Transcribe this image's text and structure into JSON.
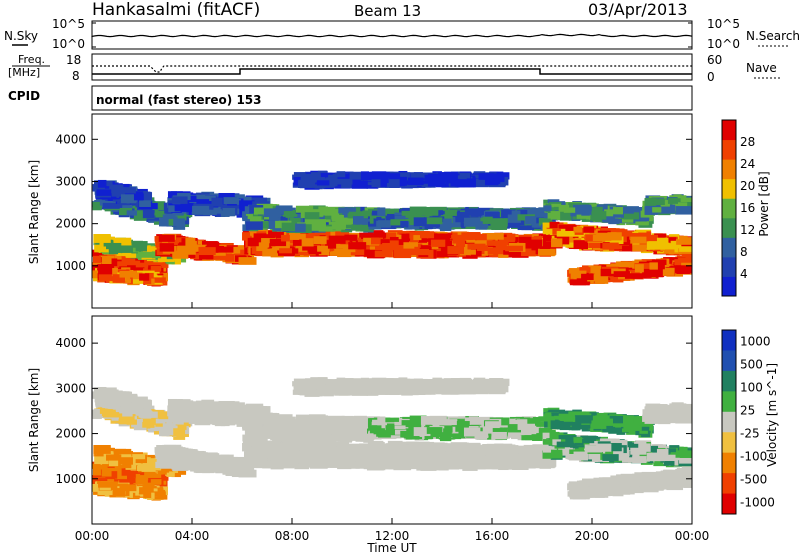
{
  "header": {
    "station": "Hankasalmi (fitACF)",
    "beam": "Beam 13",
    "date": "03/Apr/2013"
  },
  "noise_panel": {
    "left_label": "N.Sky",
    "right_label": "N.Search",
    "left_ticks": [
      "10^5",
      "10^0"
    ],
    "right_ticks": [
      "10^5",
      "10^0"
    ]
  },
  "freq_panel": {
    "left_label_1": "Freq.",
    "left_label_2": "[MHz]",
    "right_label": "Nave",
    "left_ticks": [
      "18",
      "8"
    ],
    "right_ticks": [
      "60",
      "0"
    ]
  },
  "cpid": {
    "label": "CPID",
    "value": "normal (fast stereo) 153"
  },
  "colors": {
    "power": [
      "#1020d0",
      "#2040b0",
      "#3060a0",
      "#3a9050",
      "#60b040",
      "#f0c000",
      "#f08000",
      "#f04000",
      "#e00000"
    ],
    "velocity": [
      "#1030c0",
      "#2050b0",
      "#208060",
      "#40b040",
      "#c8c8c0",
      "#f0c040",
      "#f08000",
      "#f04000",
      "#e00000"
    ]
  },
  "chart_data": [
    {
      "type": "heatmap",
      "name": "power",
      "ylabel": "Slant Range [km]",
      "yticks": [
        "1000",
        "2000",
        "3000",
        "4000"
      ],
      "ylim": [
        0,
        4600
      ],
      "colorbar": {
        "label": "Power [dB]",
        "ticks": [
          "4",
          "8",
          "12",
          "16",
          "20",
          "24",
          "28"
        ],
        "range": [
          0,
          32
        ]
      }
    },
    {
      "type": "heatmap",
      "name": "velocity",
      "ylabel": "Slant Range [km]",
      "yticks": [
        "1000",
        "2000",
        "3000",
        "4000"
      ],
      "ylim": [
        0,
        4600
      ],
      "colorbar": {
        "label": "Velocity [m s^-1]",
        "ticks": [
          "1000",
          "500",
          "100",
          "25",
          "-25",
          "-100",
          "-500",
          "-1000"
        ]
      },
      "xlabel": "Time UT",
      "xticks": [
        "00:00",
        "04:00",
        "08:00",
        "12:00",
        "16:00",
        "20:00",
        "00:00"
      ],
      "xlim_hours": [
        0,
        24
      ]
    }
  ]
}
